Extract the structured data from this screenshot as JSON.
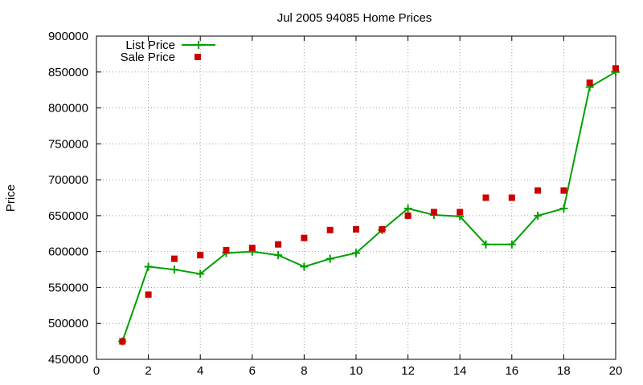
{
  "chart_data": {
    "type": "line",
    "title": "Jul 2005 94085 Home Prices",
    "xlabel": "",
    "ylabel": "Price",
    "xlim": [
      0,
      20
    ],
    "ylim": [
      450000,
      900000
    ],
    "xticks": [
      "0",
      "2",
      "4",
      "6",
      "8",
      "10",
      "12",
      "14",
      "16",
      "18",
      "20"
    ],
    "yticks": [
      "450000",
      "500000",
      "550000",
      "600000",
      "650000",
      "700000",
      "750000",
      "800000",
      "850000",
      "900000"
    ],
    "grid": true,
    "legend_position": "top-left",
    "series": [
      {
        "name": "List Price",
        "style": "line-with-plus-markers",
        "color": "#00a000",
        "x": [
          1,
          2,
          3,
          4,
          5,
          6,
          7,
          8,
          9,
          10,
          11,
          12,
          13,
          14,
          15,
          16,
          17,
          18,
          19,
          20
        ],
        "y": [
          475000,
          579000,
          575000,
          569000,
          598000,
          600000,
          595000,
          579000,
          590000,
          598000,
          630000,
          660000,
          651000,
          649000,
          610000,
          610000,
          650000,
          660000,
          829000,
          850000
        ]
      },
      {
        "name": "Sale Price",
        "style": "square-markers",
        "color": "#cc0000",
        "x": [
          1,
          2,
          3,
          4,
          5,
          6,
          7,
          8,
          9,
          10,
          11,
          12,
          13,
          14,
          15,
          16,
          17,
          18,
          19,
          20
        ],
        "y": [
          475000,
          540000,
          590000,
          595000,
          602000,
          605000,
          610000,
          619000,
          630000,
          631000,
          631000,
          650000,
          655000,
          655000,
          675000,
          675000,
          685000,
          685000,
          835000,
          855000
        ]
      }
    ]
  }
}
